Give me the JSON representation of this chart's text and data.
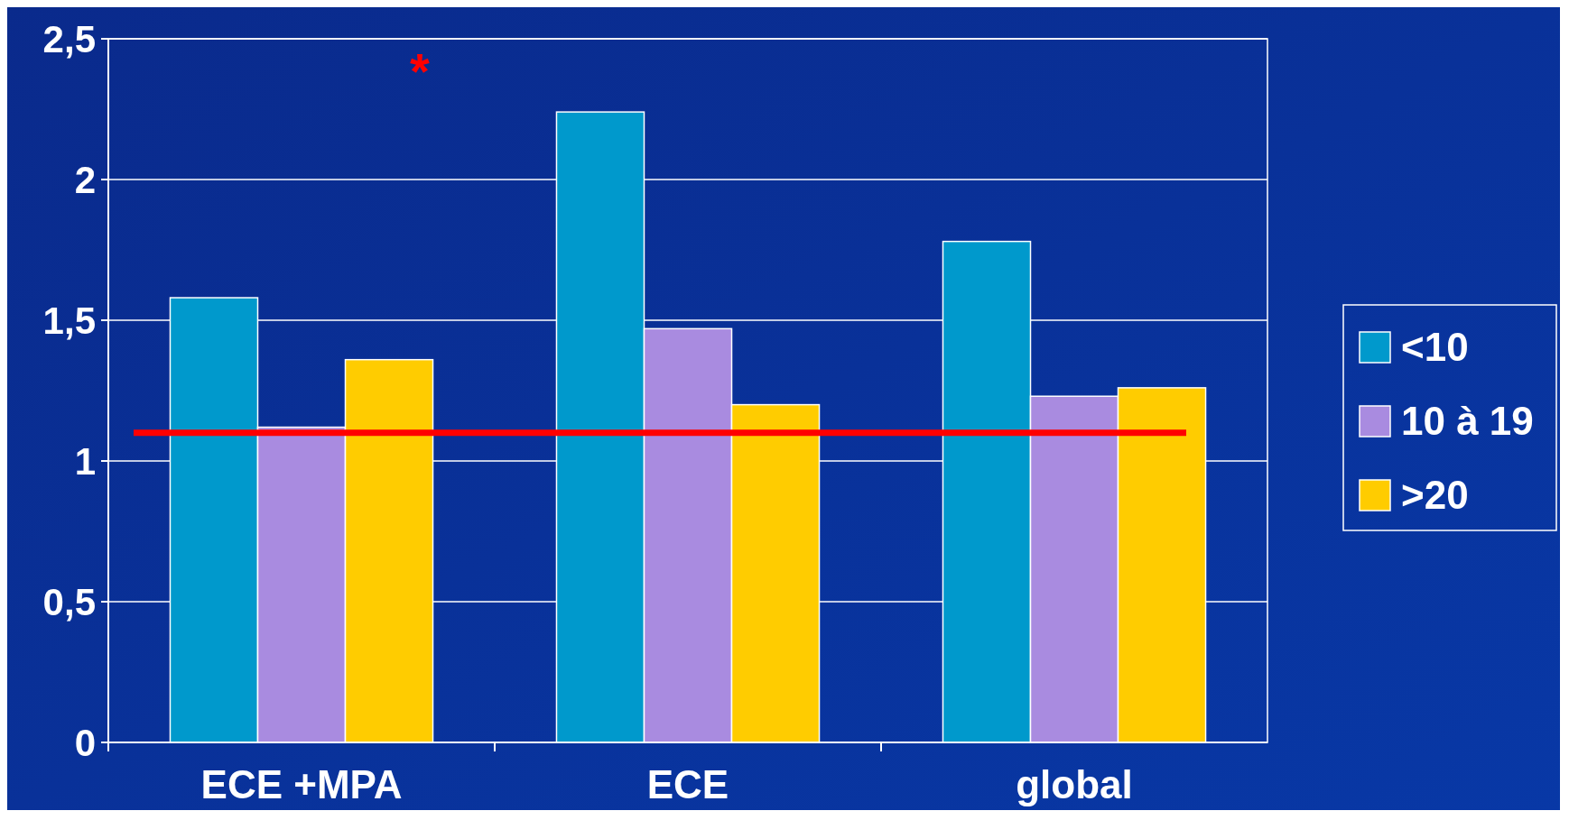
{
  "chart_data": {
    "type": "bar",
    "categories": [
      "ECE +MPA",
      "ECE",
      "global"
    ],
    "series": [
      {
        "name": "<10",
        "color": "#0099cc",
        "values": [
          1.58,
          2.24,
          1.78
        ]
      },
      {
        "name": "10 à 19",
        "color": "#a98be0",
        "values": [
          1.12,
          1.47,
          1.23
        ]
      },
      {
        "name": ">20",
        "color": "#ffcc00",
        "values": [
          1.36,
          1.2,
          1.26
        ]
      }
    ],
    "ylim": [
      0,
      2.5
    ],
    "yticks": [
      0,
      {
        "value": 0.5,
        "label": "0,5"
      },
      1,
      {
        "value": 1.5,
        "label": "1,5"
      },
      2,
      {
        "value": 2.5,
        "label": "2,5"
      }
    ],
    "grid": "y",
    "legend": "right",
    "ref_lines": [
      {
        "axis": "y",
        "value": 1.1,
        "color": "#ff0000"
      }
    ],
    "annotations": [
      "*"
    ]
  }
}
